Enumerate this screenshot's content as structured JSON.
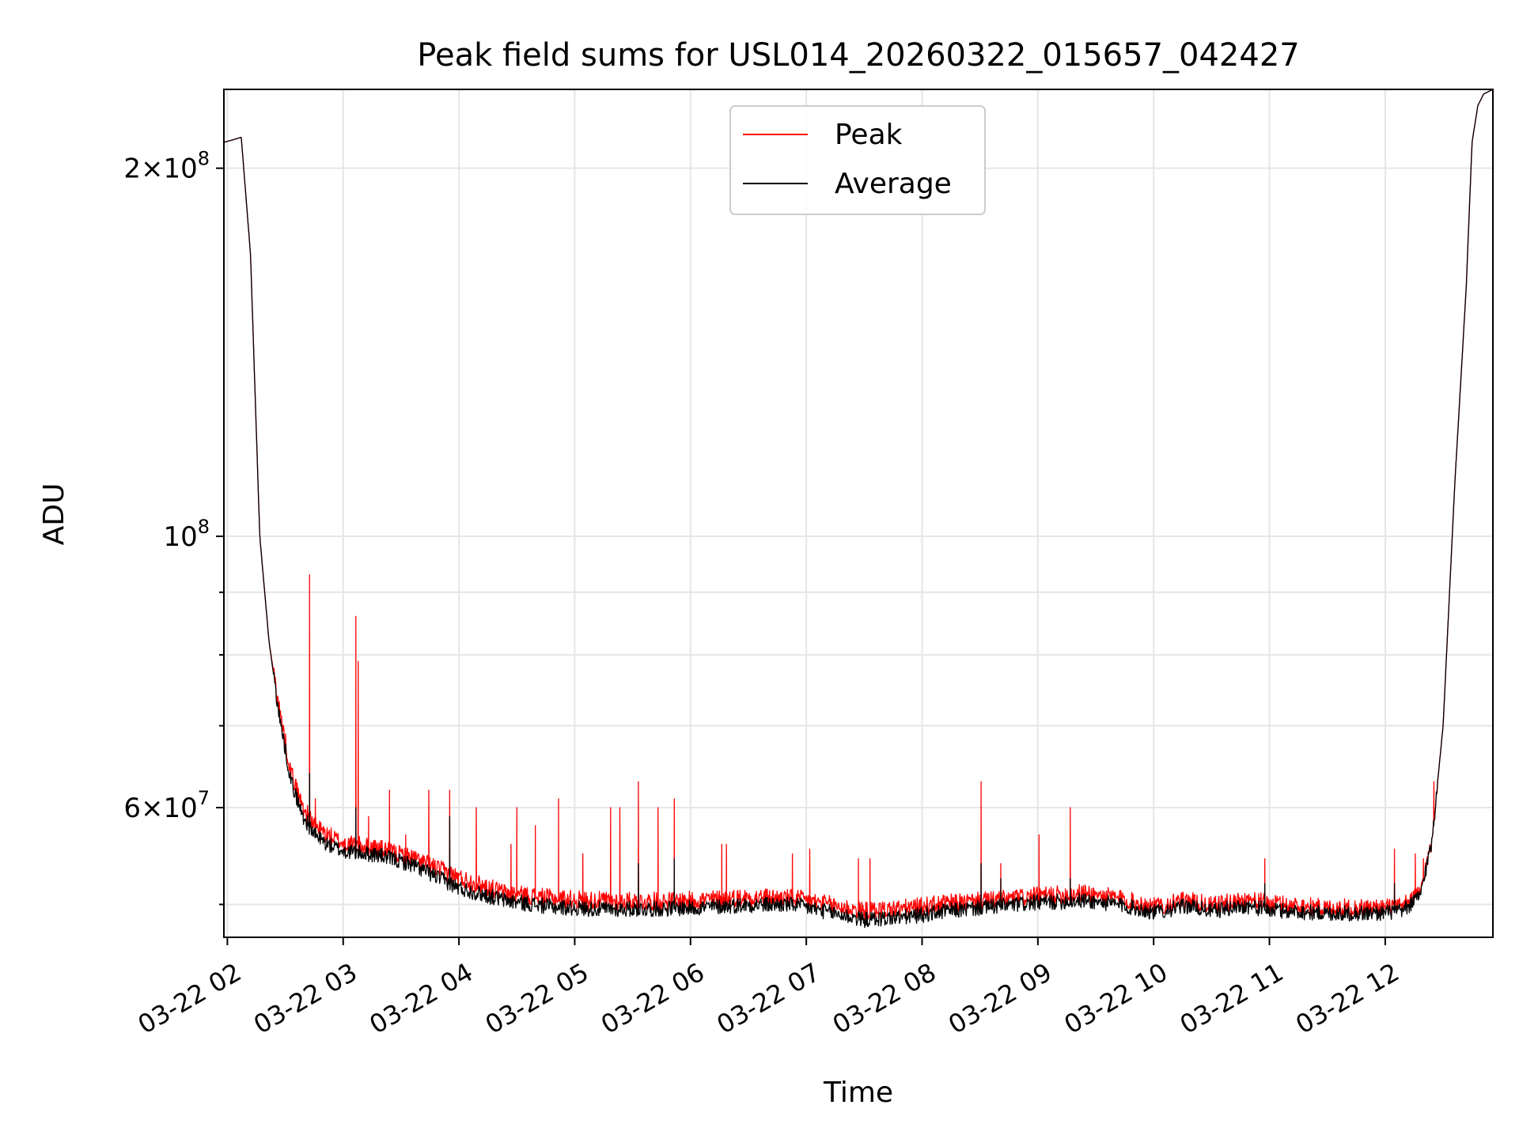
{
  "chart_data": {
    "type": "line",
    "title": "Peak field sums for USL014_20260322_015657_042427",
    "xlabel": "Time",
    "ylabel": "ADU",
    "yscale": "log",
    "grid": true,
    "legend_position": "top-center",
    "ylim": [
      47000000,
      232000000
    ],
    "xlim": [
      1.97,
      12.93
    ],
    "x_tick_labels": [
      "03-22 02",
      "03-22 03",
      "03-22 04",
      "03-22 05",
      "03-22 06",
      "03-22 07",
      "03-22 08",
      "03-22 09",
      "03-22 10",
      "03-22 11",
      "03-22 12"
    ],
    "x_tick_values": [
      2,
      3,
      4,
      5,
      6,
      7,
      8,
      9,
      10,
      11,
      12
    ],
    "y_ticks": [
      {
        "value": 200000000,
        "mantissa": "2",
        "exp": "8"
      },
      {
        "value": 100000000,
        "mantissa": "",
        "exp": "8"
      },
      {
        "value": 60000000,
        "mantissa": "6",
        "exp": "7"
      }
    ],
    "y_minor_ticks": [
      50000000,
      70000000,
      80000000,
      90000000
    ],
    "series": [
      {
        "name": "Peak",
        "color": "#ff0000",
        "base_x": [
          1.97,
          2.05,
          2.12,
          2.2,
          2.28,
          2.36,
          2.45,
          2.55,
          2.65,
          2.75,
          2.85,
          3.0,
          3.3,
          3.6,
          4.0,
          4.4,
          4.8,
          5.2,
          5.6,
          6.0,
          6.5,
          6.9,
          7.5,
          7.9,
          8.2,
          8.6,
          9.0,
          9.4,
          9.7,
          10.0,
          10.3,
          10.5,
          10.8,
          11.0,
          11.5,
          11.9,
          12.15,
          12.3,
          12.4,
          12.5,
          12.6,
          12.7,
          12.75,
          12.8,
          12.85,
          12.93
        ],
        "base_y": [
          210000000,
          211000000,
          212000000,
          170000000,
          100000000,
          82000000,
          72000000,
          64000000,
          60000000,
          58000000,
          57000000,
          56000000,
          55500000,
          54500000,
          52500000,
          51000000,
          50500000,
          50300000,
          50200000,
          50300000,
          50600000,
          50500000,
          49300000,
          49600000,
          50000000,
          50300000,
          50700000,
          51000000,
          50500000,
          49700000,
          50300000,
          49800000,
          50400000,
          50000000,
          49600000,
          49600000,
          49700000,
          51000000,
          56000000,
          70000000,
          110000000,
          160000000,
          210000000,
          225000000,
          230000000,
          232000000
        ],
        "spikes": [
          {
            "x": 2.71,
            "y": 93000000
          },
          {
            "x": 2.76,
            "y": 61000000
          },
          {
            "x": 3.11,
            "y": 86000000
          },
          {
            "x": 3.13,
            "y": 79000000
          },
          {
            "x": 3.22,
            "y": 59000000
          },
          {
            "x": 3.4,
            "y": 62000000
          },
          {
            "x": 3.54,
            "y": 57000000
          },
          {
            "x": 3.74,
            "y": 62000000
          },
          {
            "x": 3.92,
            "y": 62000000
          },
          {
            "x": 4.15,
            "y": 60000000
          },
          {
            "x": 4.45,
            "y": 56000000
          },
          {
            "x": 4.5,
            "y": 60000000
          },
          {
            "x": 4.66,
            "y": 58000000
          },
          {
            "x": 4.86,
            "y": 61000000
          },
          {
            "x": 5.07,
            "y": 55000000
          },
          {
            "x": 5.31,
            "y": 60000000
          },
          {
            "x": 5.39,
            "y": 60000000
          },
          {
            "x": 5.55,
            "y": 63000000
          },
          {
            "x": 5.72,
            "y": 60000000
          },
          {
            "x": 5.86,
            "y": 61000000
          },
          {
            "x": 6.27,
            "y": 56000000
          },
          {
            "x": 6.31,
            "y": 56000000
          },
          {
            "x": 6.88,
            "y": 55000000
          },
          {
            "x": 7.03,
            "y": 55500000
          },
          {
            "x": 7.45,
            "y": 54500000
          },
          {
            "x": 7.55,
            "y": 54500000
          },
          {
            "x": 8.51,
            "y": 63000000
          },
          {
            "x": 8.68,
            "y": 54000000
          },
          {
            "x": 9.01,
            "y": 57000000
          },
          {
            "x": 9.28,
            "y": 60000000
          },
          {
            "x": 10.96,
            "y": 54500000
          },
          {
            "x": 12.08,
            "y": 55500000
          },
          {
            "x": 12.26,
            "y": 55000000
          },
          {
            "x": 12.33,
            "y": 54500000
          },
          {
            "x": 12.42,
            "y": 63000000
          }
        ]
      },
      {
        "name": "Average",
        "color": "#000000",
        "base_x": [
          1.97,
          2.05,
          2.12,
          2.2,
          2.28,
          2.36,
          2.45,
          2.55,
          2.65,
          2.75,
          2.85,
          3.0,
          3.3,
          3.6,
          4.0,
          4.4,
          4.8,
          5.2,
          5.6,
          6.0,
          6.5,
          6.9,
          7.5,
          7.9,
          8.2,
          8.6,
          9.0,
          9.4,
          9.7,
          10.0,
          10.3,
          10.5,
          10.8,
          11.0,
          11.5,
          11.9,
          12.15,
          12.3,
          12.4,
          12.5,
          12.6,
          12.7,
          12.75,
          12.8,
          12.85,
          12.93
        ],
        "base_y": [
          210000000,
          211000000,
          212000000,
          170000000,
          100000000,
          82000000,
          71000000,
          63000000,
          59000000,
          57000000,
          56000000,
          55200000,
          54800000,
          53800000,
          51500000,
          50300000,
          49700000,
          49500000,
          49500000,
          49600000,
          49900000,
          49900000,
          48500000,
          48800000,
          49300000,
          49700000,
          50100000,
          50300000,
          49900000,
          49200000,
          49800000,
          49300000,
          49800000,
          49400000,
          49100000,
          49100000,
          49300000,
          50700000,
          56000000,
          70000000,
          110000000,
          160000000,
          210000000,
          225000000,
          230000000,
          232000000
        ],
        "spikes": [
          {
            "x": 2.71,
            "y": 64000000
          },
          {
            "x": 3.11,
            "y": 60000000
          },
          {
            "x": 3.92,
            "y": 59000000
          },
          {
            "x": 5.55,
            "y": 54000000
          },
          {
            "x": 5.86,
            "y": 54500000
          },
          {
            "x": 8.51,
            "y": 54000000
          },
          {
            "x": 8.68,
            "y": 52500000
          },
          {
            "x": 9.28,
            "y": 52500000
          },
          {
            "x": 10.96,
            "y": 52000000
          },
          {
            "x": 12.08,
            "y": 52000000
          },
          {
            "x": 12.42,
            "y": 58000000
          }
        ]
      }
    ]
  }
}
